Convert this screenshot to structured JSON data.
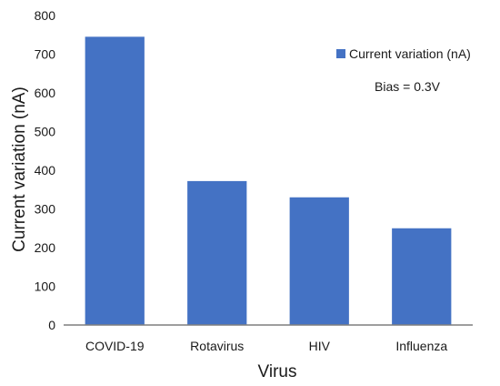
{
  "chart_data": {
    "type": "bar",
    "categories": [
      "COVID-19",
      "Rotavirus",
      "HIV",
      "Influenza"
    ],
    "series": [
      {
        "name": "Current variation (nA)",
        "values": [
          745,
          372,
          330,
          250
        ]
      }
    ],
    "xlabel": "Virus",
    "ylabel": "Current variation (nA)",
    "ylim": [
      0,
      800
    ],
    "yticks": [
      "0",
      "100",
      "200",
      "300",
      "400",
      "500",
      "600",
      "700",
      "800"
    ],
    "grid": false,
    "legend_position": "top-right",
    "annotation": "Bias = 0.3V",
    "colors": {
      "bar": "#4472C4",
      "axis": "#7f7f7f"
    }
  }
}
